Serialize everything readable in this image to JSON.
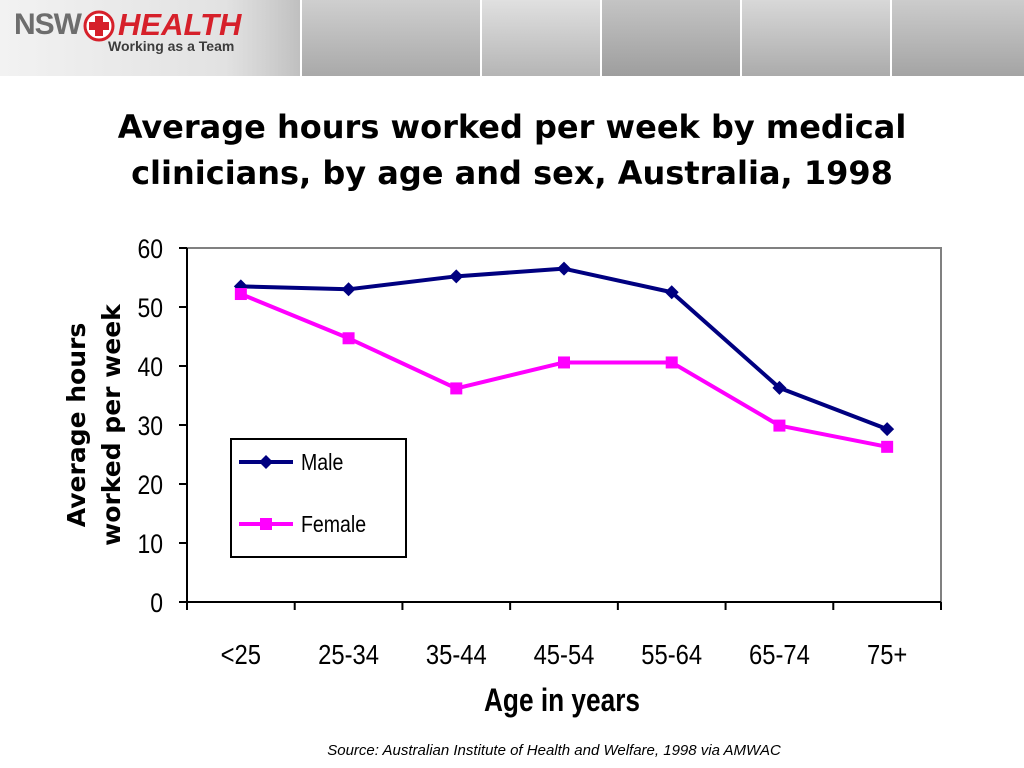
{
  "header": {
    "logo_left": "NSW",
    "logo_right": "HEALTH",
    "tagline": "Working as a Team"
  },
  "title": "Average hours worked per week by medical clinicians, by age and sex, Australia, 1998",
  "source": "Source: Australian Institute of Health and Welfare, 1998  via AMWAC",
  "chart_data": {
    "type": "line",
    "categories": [
      "<25",
      "25-34",
      "35-44",
      "45-54",
      "55-64",
      "65-74",
      "75+"
    ],
    "series": [
      {
        "name": "Male",
        "values": [
          53.5,
          53.0,
          55.2,
          56.5,
          52.5,
          36.3,
          29.3
        ],
        "color": "#000080",
        "marker": "diamond"
      },
      {
        "name": "Female",
        "values": [
          52.2,
          44.7,
          36.2,
          40.6,
          40.6,
          29.9,
          26.3
        ],
        "color": "#ff00ff",
        "marker": "square"
      }
    ],
    "xlabel": "Age in years",
    "ylabel_lines": [
      "Average hours",
      "worked per week"
    ],
    "ylim": [
      0,
      60
    ],
    "yticks": [
      0,
      10,
      20,
      30,
      40,
      50,
      60
    ],
    "grid": false,
    "legend_position": "lower-left inside plot"
  },
  "colors": {
    "logo_red": "#d6202a",
    "plot_border": "#808080"
  }
}
